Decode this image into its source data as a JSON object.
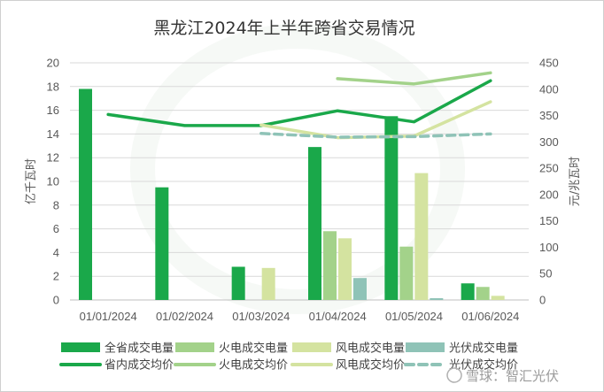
{
  "chart_data": {
    "type": "bar",
    "title": "黑龙江2024年上半年跨省交易情况",
    "categories": [
      "01/01/2024",
      "01/02/2024",
      "01/03/2024",
      "01/04/2024",
      "01/05/2024",
      "01/06/2024"
    ],
    "ylabel_left": "亿千瓦时",
    "ylabel_right": "元/兆瓦时",
    "ylim_left": [
      0,
      20
    ],
    "ylim_right": [
      0,
      450
    ],
    "yticks_left": [
      "0",
      "2",
      "4",
      "6",
      "8",
      "10",
      "12",
      "14",
      "16",
      "18",
      "20"
    ],
    "yticks_right": [
      "0",
      "50",
      "100",
      "150",
      "200",
      "250",
      "300",
      "350",
      "400",
      "450"
    ],
    "grid": true,
    "legend_position": "bottom",
    "bar_series": [
      {
        "name": "全省成交电量",
        "color": "#1aa84a",
        "values": [
          17.8,
          9.5,
          2.8,
          12.9,
          15.5,
          1.4
        ]
      },
      {
        "name": "火电成交电量",
        "color": "#a3d28a",
        "values": [
          null,
          null,
          null,
          5.8,
          4.5,
          1.1
        ]
      },
      {
        "name": "风电成交电量",
        "color": "#d4e3a0",
        "values": [
          null,
          null,
          2.7,
          5.2,
          10.7,
          0.35
        ]
      },
      {
        "name": "光伏成交电量",
        "color": "#8fc3b7",
        "values": [
          null,
          null,
          null,
          1.85,
          0.15,
          null
        ]
      }
    ],
    "line_series": [
      {
        "name": "省内成交均价",
        "color": "#1aa84a",
        "dash": false,
        "values": [
          352,
          331,
          331,
          359,
          338,
          416
        ]
      },
      {
        "name": "火电成交均价",
        "color": "#a3d28a",
        "dash": false,
        "values": [
          null,
          null,
          null,
          420,
          410,
          431
        ]
      },
      {
        "name": "风电成交均价",
        "color": "#d4e3a0",
        "dash": false,
        "values": [
          null,
          null,
          332,
          308,
          311,
          376
        ]
      },
      {
        "name": "光伏成交均价",
        "color": "#8fc3b7",
        "dash": true,
        "values": [
          null,
          null,
          316,
          309,
          310,
          315
        ]
      }
    ]
  },
  "watermark": {
    "text": "雪球：智汇光伏"
  }
}
